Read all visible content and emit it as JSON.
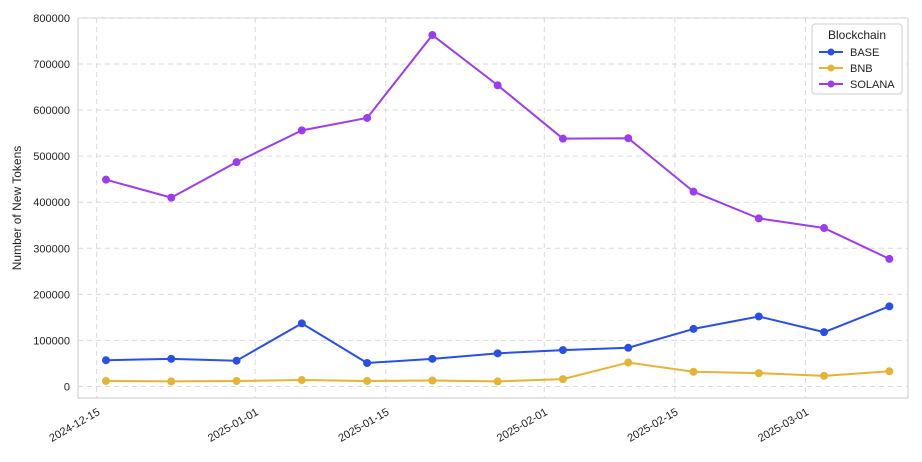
{
  "chart_data": {
    "type": "line",
    "title": "",
    "xlabel": "",
    "ylabel": "Number of New Tokens",
    "x_type": "date",
    "xlim": [
      "2024-12-13",
      "2025-03-12"
    ],
    "ylim": [
      -25000,
      800000
    ],
    "grid": true,
    "x_ticks": [
      "2024-12-15",
      "2025-01-01",
      "2025-01-15",
      "2025-02-01",
      "2025-02-15",
      "2025-03-01"
    ],
    "y_ticks": [
      0,
      100000,
      200000,
      300000,
      400000,
      500000,
      600000,
      700000,
      800000
    ],
    "x": [
      "2024-12-16",
      "2024-12-23",
      "2024-12-30",
      "2025-01-06",
      "2025-01-13",
      "2025-01-20",
      "2025-01-27",
      "2025-02-03",
      "2025-02-10",
      "2025-02-17",
      "2025-02-24",
      "2025-03-03",
      "2025-03-10"
    ],
    "legend": {
      "title": "Blockchain",
      "position": "top-right"
    },
    "series": [
      {
        "name": "BASE",
        "color": "#2a4fe6",
        "values": [
          57000,
          60000,
          56000,
          137000,
          51000,
          60000,
          72000,
          79000,
          84000,
          125000,
          152000,
          118000,
          174000
        ]
      },
      {
        "name": "BNB",
        "color": "#e3b436",
        "values": [
          12000,
          11000,
          12000,
          14000,
          12000,
          13000,
          11000,
          16000,
          52000,
          32000,
          29000,
          23000,
          33000
        ]
      },
      {
        "name": "SOLANA",
        "color": "#9b3cf0",
        "values": [
          449000,
          410000,
          487000,
          556000,
          583000,
          763000,
          654000,
          538000,
          539000,
          423000,
          365000,
          344000,
          277000
        ]
      }
    ]
  }
}
